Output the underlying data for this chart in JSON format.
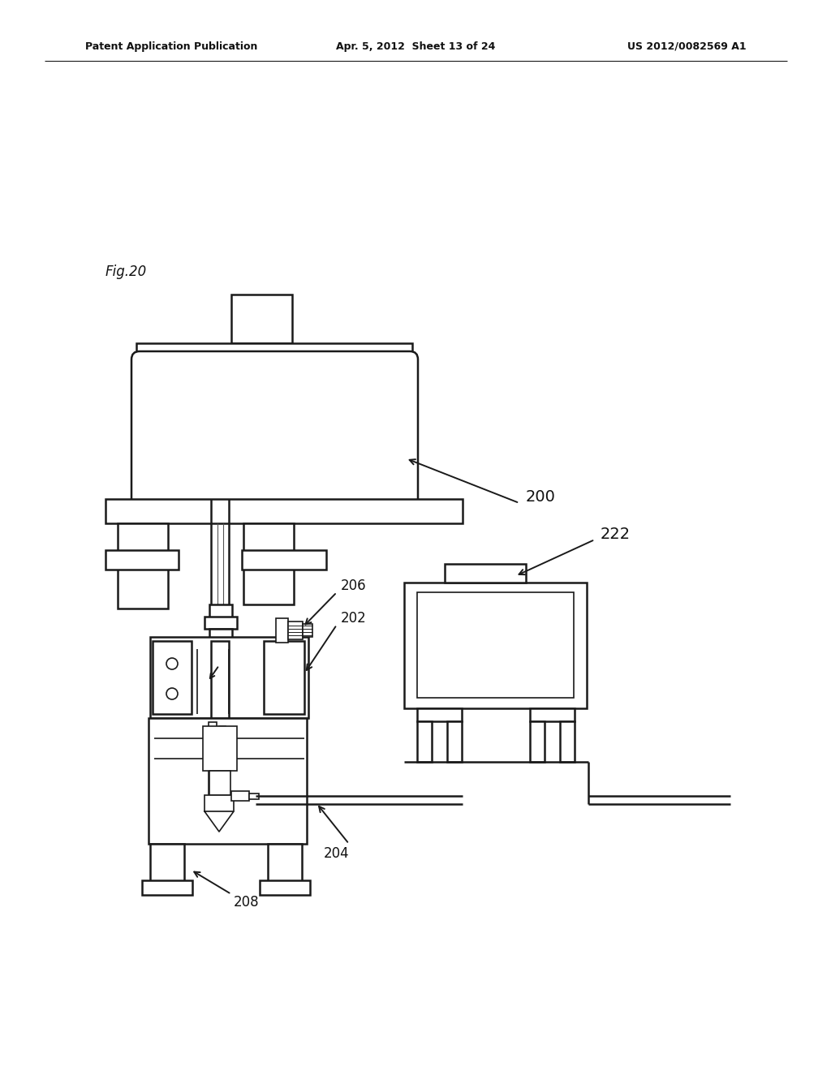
{
  "bg_color": "#ffffff",
  "line_color": "#1a1a1a",
  "header_left": "Patent Application Publication",
  "header_mid": "Apr. 5, 2012  Sheet 13 of 24",
  "header_right": "US 2012/0082569 A1",
  "fig_label": "Fig.20",
  "label_200": "200",
  "label_222": "222",
  "label_206": "206",
  "label_202": "202",
  "label_204": "204",
  "label_208": "208"
}
